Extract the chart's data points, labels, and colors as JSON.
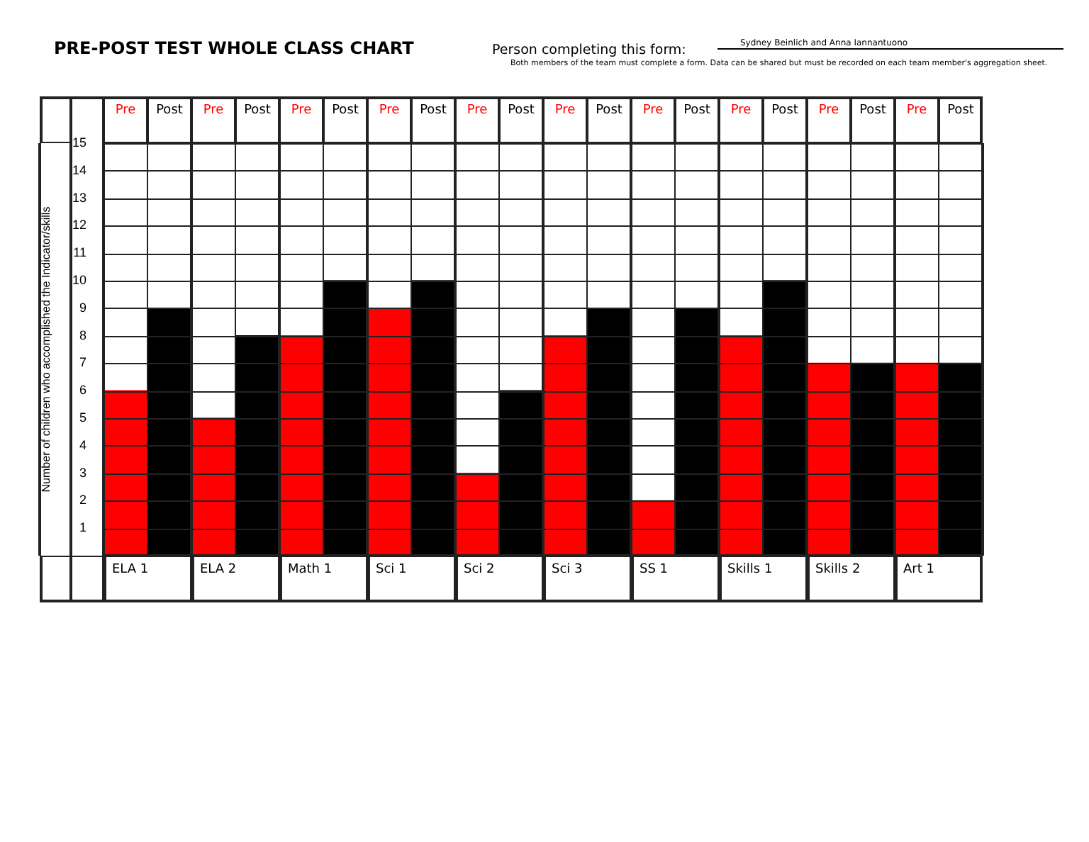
{
  "chart_data": {
    "type": "bar",
    "title": "PRE-POST TEST WHOLE CLASS CHART",
    "ylabel": "Number of children who accomplished the Indicator/skills",
    "annotations": [
      "Person completing this form:",
      "Sydney Beinlich and Anna Iannantuono",
      "Both members of the team must complete a form.  Data can be shared but must be recorded on each team member's aggregation sheet."
    ],
    "categories": [
      "ELA 1",
      "ELA 2",
      "Math 1",
      "Sci 1",
      "Sci 2",
      "Sci 3",
      "SS 1",
      "Skills 1",
      "Skills 2",
      "Art 1"
    ],
    "series": [
      {
        "name": "Pre",
        "color": "#ff0000",
        "values": [
          6,
          5,
          8,
          9,
          3,
          8,
          2,
          8,
          7,
          7
        ]
      },
      {
        "name": "Post",
        "color": "#000000",
        "values": [
          9,
          8,
          10,
          10,
          6,
          9,
          9,
          10,
          7,
          7
        ]
      }
    ],
    "ylim": [
      0,
      15
    ],
    "yticks": [
      1,
      2,
      3,
      4,
      5,
      6,
      7,
      8,
      9,
      10,
      11,
      12,
      13,
      14,
      15
    ],
    "grid": true,
    "legend": false
  }
}
